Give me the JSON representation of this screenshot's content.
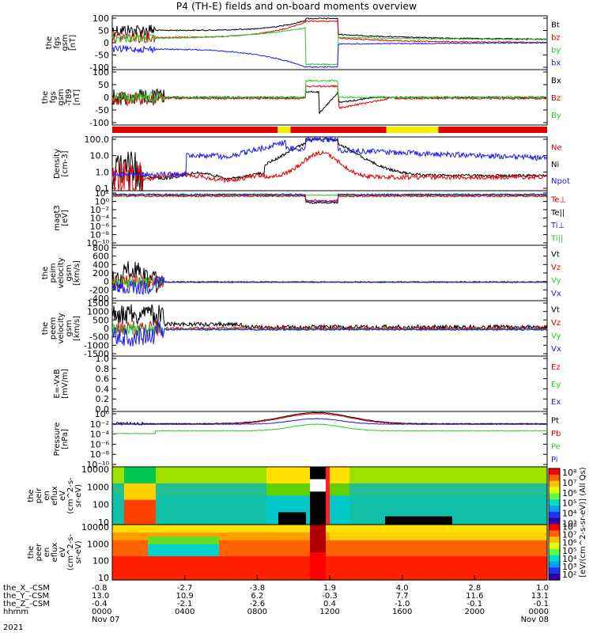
{
  "title": "P4 (TH-E) fields and on-board moments overview",
  "colors": {
    "black": "#000000",
    "red": "#e00000",
    "green": "#2ec82e",
    "blue": "#1c1cf0",
    "yellow": "#f0f000"
  },
  "chart_data": [
    {
      "type": "line",
      "id": "fgs",
      "ylabel": [
        "the",
        "fgs",
        "gsm",
        "[nT]"
      ],
      "ylim": [
        -100,
        100
      ],
      "yticks": [
        "100",
        "50",
        "0",
        "-50",
        "-100"
      ],
      "legend": [
        {
          "name": "Bt",
          "color": "black"
        },
        {
          "name": "bz",
          "color": "red"
        },
        {
          "name": "by",
          "color": "green"
        },
        {
          "name": "bx",
          "color": "blue"
        }
      ]
    },
    {
      "type": "line",
      "id": "fgs-dbl",
      "ylabel": [
        "the",
        "fgs",
        "gsm",
        "-T89",
        "[nT]"
      ],
      "ylim": [
        -130,
        130
      ],
      "yticks": [
        "100",
        "50",
        "0",
        "-50",
        "-100"
      ],
      "legend": [
        {
          "name": "Bx",
          "color": "black"
        },
        {
          "name": "Bz",
          "color": "red"
        },
        {
          "name": "By",
          "color": "green"
        }
      ]
    },
    {
      "type": "bar",
      "id": "mode-bar",
      "segments": [
        {
          "from": 0,
          "to": 0.38,
          "color": "red"
        },
        {
          "from": 0.38,
          "to": 0.41,
          "color": "yellow"
        },
        {
          "from": 0.41,
          "to": 0.63,
          "color": "red"
        },
        {
          "from": 0.63,
          "to": 0.75,
          "color": "yellow"
        },
        {
          "from": 0.75,
          "to": 1,
          "color": "red"
        }
      ]
    },
    {
      "type": "line",
      "id": "density",
      "ylabel": [
        "Density",
        "[cm-3]"
      ],
      "scale": "log",
      "ylim": [
        0.1,
        200
      ],
      "yticks": [
        "100.0",
        "10.0",
        "1.0",
        "0.1"
      ],
      "legend": [
        {
          "name": "Ne",
          "color": "red"
        },
        {
          "name": "Ni",
          "color": "black"
        },
        {
          "name": "Npot",
          "color": "blue"
        }
      ]
    },
    {
      "type": "line",
      "id": "temperature",
      "ylabel": [
        "magt3",
        "[eV]"
      ],
      "scale": "log",
      "yticks": [
        "10²",
        "10⁰",
        "10⁻²",
        "10⁻⁴",
        "10⁻⁶",
        "10⁻⁸",
        "10⁻¹⁰"
      ],
      "legend": [
        {
          "name": "Te⊥",
          "color": "red"
        },
        {
          "name": "Te||",
          "color": "black"
        },
        {
          "name": "Ti⊥",
          "color": "blue"
        },
        {
          "name": "Ti||",
          "color": "green"
        }
      ]
    },
    {
      "type": "line",
      "id": "peim-velocity",
      "ylabel": [
        "the",
        "peim",
        "velocity",
        "gsm",
        "[km/s]"
      ],
      "ylim": [
        -400,
        800
      ],
      "yticks": [
        "800",
        "600",
        "400",
        "200",
        "0",
        "-200",
        "-400"
      ],
      "legend": [
        {
          "name": "Vt",
          "color": "black"
        },
        {
          "name": "Vz",
          "color": "red"
        },
        {
          "name": "Vy",
          "color": "green"
        },
        {
          "name": "Vx",
          "color": "blue"
        }
      ]
    },
    {
      "type": "line",
      "id": "peem-velocity",
      "ylabel": [
        "the",
        "peem",
        "velocity",
        "gsm",
        "[km/s]"
      ],
      "ylim": [
        -1500,
        1500
      ],
      "yticks": [
        "1500",
        "1000",
        "500",
        "0",
        "-500",
        "-1000",
        "-1500"
      ],
      "legend": [
        {
          "name": "Vt",
          "color": "black"
        },
        {
          "name": "Vz",
          "color": "red"
        },
        {
          "name": "Vy",
          "color": "green"
        },
        {
          "name": "Vx",
          "color": "blue"
        }
      ]
    },
    {
      "type": "line",
      "id": "efield",
      "ylabel": [
        "E=-VxB",
        "[mV/m]"
      ],
      "ylim": [
        0,
        1
      ],
      "yticks": [
        "1.0",
        "0.8",
        "0.6",
        "0.4",
        "0.2",
        "0.0"
      ],
      "legend": [
        {
          "name": "Ez",
          "color": "red"
        },
        {
          "name": "Ey",
          "color": "green"
        },
        {
          "name": "Ex",
          "color": "blue"
        }
      ]
    },
    {
      "type": "line",
      "id": "pressure",
      "ylabel": [
        "Pressure",
        "[nPa]"
      ],
      "scale": "log",
      "yticks": [
        "10⁰",
        "10⁻²",
        "10⁻⁴",
        "10⁻⁶",
        "10⁻⁸",
        "10⁻¹⁰"
      ],
      "legend": [
        {
          "name": "Pt",
          "color": "black"
        },
        {
          "name": "Pb",
          "color": "red"
        },
        {
          "name": "Pe",
          "color": "green"
        },
        {
          "name": "Pi",
          "color": "blue"
        }
      ]
    },
    {
      "type": "heatmap",
      "id": "peir-spectrogram",
      "ylabel": [
        "the",
        "peir",
        "en",
        "eflux",
        "eV",
        "(cm^2-s-",
        "sr-eV)"
      ],
      "scale": "log",
      "yticks": [
        "10000",
        "1000",
        "100",
        "10"
      ]
    },
    {
      "type": "heatmap",
      "id": "peer-spectrogram",
      "ylabel": [
        "the",
        "peer",
        "en",
        "eflux",
        "eV",
        "(cm^2-s-",
        "sr-eV)"
      ],
      "scale": "log",
      "yticks": [
        "10000",
        "1000",
        "100",
        "10"
      ]
    }
  ],
  "colorbar": {
    "label": "[eV/(cm^2-s-sr-eV)] (All Qs)",
    "ticks_upper": [
      "10⁸",
      "10⁷",
      "10⁶",
      "10⁵",
      "10⁴",
      "10³"
    ],
    "ticks_lower": [
      "10⁸",
      "10⁷",
      "10⁶",
      "10⁵",
      "10⁴",
      "10³",
      "10²"
    ]
  },
  "ephemeris": {
    "rows": [
      {
        "label": "the_X_-CSM",
        "values": [
          "-0.8",
          "-2.7",
          "-3.8",
          "1.9",
          "4.0",
          "2.8",
          "1.0"
        ]
      },
      {
        "label": "the_Y_-CSM",
        "values": [
          "13.0",
          "10.9",
          "6.2",
          "-0.3",
          "7.7",
          "11.6",
          "13.1"
        ]
      },
      {
        "label": "the_Z_-CSM",
        "values": [
          "-0.4",
          "-2.1",
          "-2.6",
          "0.4",
          "-1.0",
          "-0.1",
          "-0.1"
        ]
      },
      {
        "label": "hhmm",
        "values": [
          "0000",
          "0400",
          "0800",
          "1200",
          "1600",
          "2000",
          "0000"
        ]
      }
    ],
    "year": "2021",
    "date_start": "Nov 07",
    "date_end": "Nov 08"
  }
}
